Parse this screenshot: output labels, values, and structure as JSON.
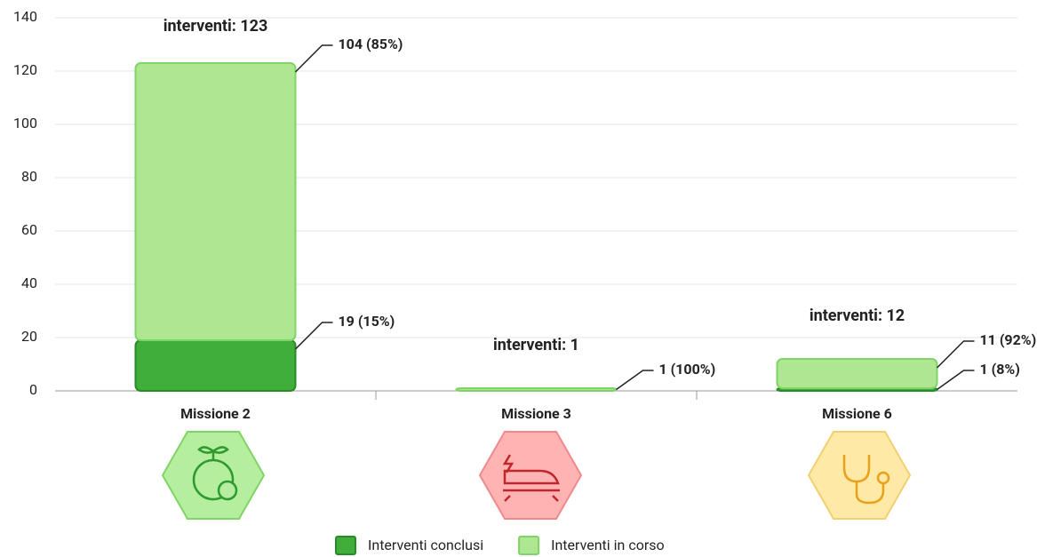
{
  "chart_data": {
    "type": "stacked_bar",
    "categories": [
      "Missione 2",
      "Missione 3",
      "Missione 6"
    ],
    "series": [
      {
        "name": "Interventi conclusi",
        "color": "#3fae3a",
        "values": [
          19,
          null,
          1
        ],
        "value_labels": [
          "19 (15%)",
          null,
          "1 (8%)"
        ]
      },
      {
        "name": "Interventi in corso",
        "color": "#aee692",
        "values": [
          104,
          1,
          11
        ],
        "value_labels": [
          "104 (85%)",
          "1 (100%)",
          "11 (92%)"
        ]
      }
    ],
    "total_labels": [
      "interventi: 123",
      "interventi: 1",
      "interventi: 12"
    ],
    "ylim": [
      0,
      140
    ],
    "yticks": [
      0,
      20,
      40,
      60,
      80,
      100,
      120,
      140
    ],
    "grid": true,
    "legend": "bottom"
  }
}
